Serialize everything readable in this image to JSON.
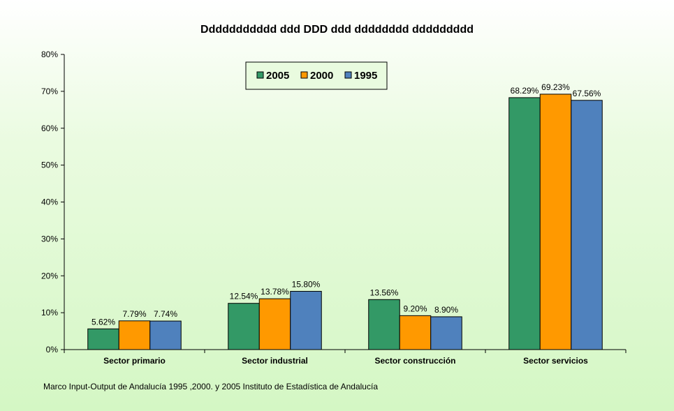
{
  "chart_data": {
    "type": "bar",
    "title": "Ddddddddddd ddd DDD ddd dddddddd ddddddddd",
    "categories": [
      "Sector primario",
      "Sector industrial",
      "Sector construcción",
      "Sector servicios"
    ],
    "series": [
      {
        "name": "2005",
        "color": "#339966",
        "values": [
          5.62,
          12.54,
          13.56,
          68.29
        ],
        "labels": [
          "5.62%",
          "12.54%",
          "13.56%",
          "68.29%"
        ]
      },
      {
        "name": "2000",
        "color": "#ff9900",
        "values": [
          7.79,
          13.78,
          9.2,
          69.23
        ],
        "labels": [
          "7.79%",
          "13.78%",
          "9.20%",
          "69.23%"
        ]
      },
      {
        "name": "1995",
        "color": "#4f81bd",
        "values": [
          7.74,
          15.8,
          8.9,
          67.56
        ],
        "labels": [
          "7.74%",
          "15.80%",
          "8.90%",
          "67.56%"
        ]
      }
    ],
    "ylim": [
      0,
      80
    ],
    "yticks": [
      "0%",
      "10%",
      "20%",
      "30%",
      "40%",
      "50%",
      "60%",
      "70%",
      "80%"
    ],
    "grid": false,
    "legend_position": "top-center",
    "source": "Marco Input-Output de Andalucía 1995 ,2000. y 2005 Instituto de Estadística de Andalucía"
  }
}
